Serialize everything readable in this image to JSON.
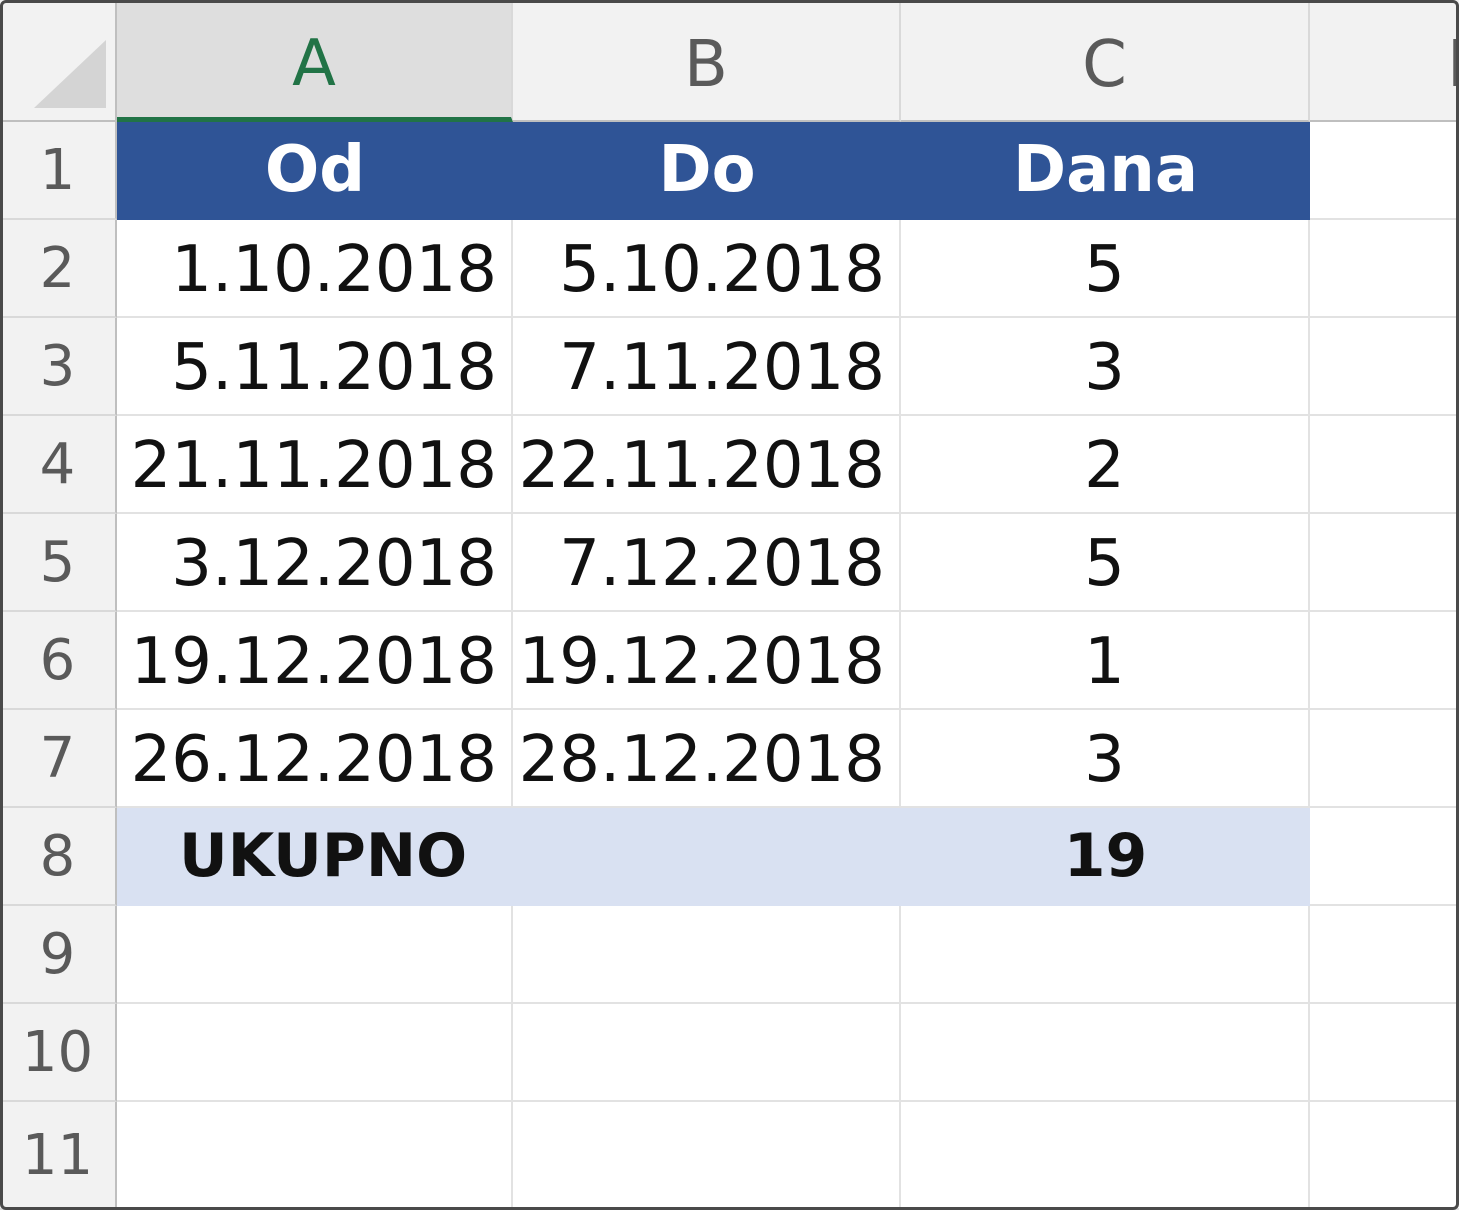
{
  "columns": [
    "A",
    "B",
    "C",
    "D"
  ],
  "row_numbers": [
    "1",
    "2",
    "3",
    "4",
    "5",
    "6",
    "7",
    "8",
    "9",
    "10",
    "11"
  ],
  "header": {
    "from": "Od",
    "to": "Do",
    "days": "Dana"
  },
  "rows": [
    {
      "from": "1.10.2018",
      "to": "5.10.2018",
      "days": "5"
    },
    {
      "from": "5.11.2018",
      "to": "7.11.2018",
      "days": "3"
    },
    {
      "from": "21.11.2018",
      "to": "22.11.2018",
      "days": "2"
    },
    {
      "from": "3.12.2018",
      "to": "7.12.2018",
      "days": "5"
    },
    {
      "from": "19.12.2018",
      "to": "19.12.2018",
      "days": "1"
    },
    {
      "from": "26.12.2018",
      "to": "28.12.2018",
      "days": "3"
    }
  ],
  "total": {
    "label": "UKUPNO",
    "value": "19"
  },
  "selected_column": "A",
  "colors": {
    "header_fill": "#2f5496",
    "total_fill": "#d9e1f2",
    "selection_accent": "#217346"
  }
}
